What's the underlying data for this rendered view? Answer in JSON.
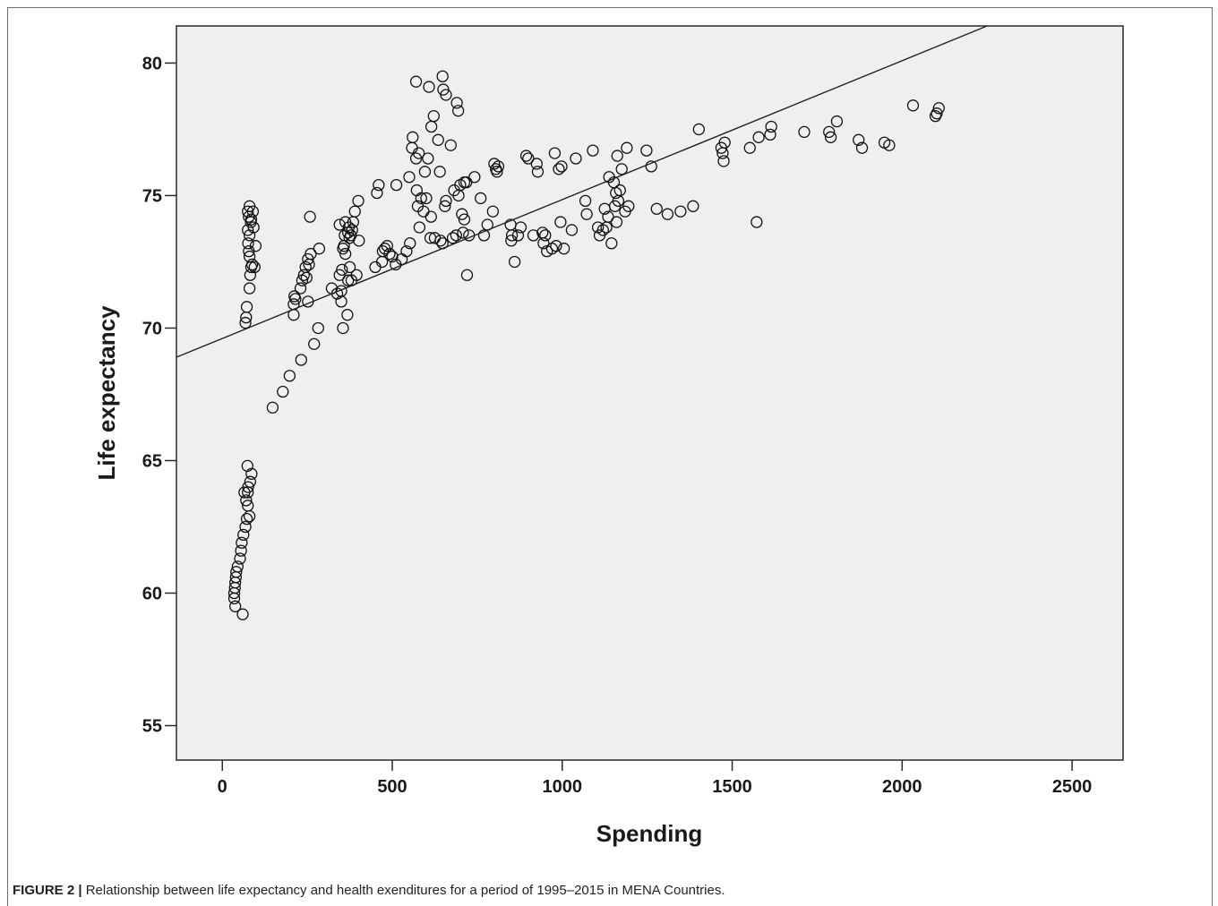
{
  "caption": {
    "label": "FIGURE 2 |",
    "text": "Relationship between life expectancy and health exenditures for a period of 1995–2015 in MENA Countries."
  },
  "colors": {
    "plot_background": "#efefef",
    "marker_stroke": "#111111",
    "fit_line": "#222222"
  },
  "chart_data": {
    "type": "scatter",
    "xlabel": "Spending",
    "ylabel": "Life expectancy",
    "xlim": [
      -135,
      2650
    ],
    "ylim": [
      53.7,
      81.4
    ],
    "x_ticks": [
      0,
      500,
      1000,
      1500,
      2000,
      2500
    ],
    "y_ticks": [
      55,
      60,
      65,
      70,
      75,
      80
    ],
    "grid": false,
    "legend": "none",
    "marker": "hollow-circle",
    "fit_line": {
      "x": [
        -135,
        2250
      ],
      "y": [
        68.9,
        81.4
      ]
    },
    "points": [
      [
        60,
        59.2
      ],
      [
        38,
        59.5
      ],
      [
        35,
        59.8
      ],
      [
        35,
        60.0
      ],
      [
        37,
        60.2
      ],
      [
        38,
        60.4
      ],
      [
        40,
        60.6
      ],
      [
        41,
        60.8
      ],
      [
        45,
        61.0
      ],
      [
        52,
        61.3
      ],
      [
        55,
        61.6
      ],
      [
        57,
        61.9
      ],
      [
        62,
        62.2
      ],
      [
        68,
        62.5
      ],
      [
        72,
        62.8
      ],
      [
        80,
        62.9
      ],
      [
        75,
        63.3
      ],
      [
        70,
        63.5
      ],
      [
        75,
        63.8
      ],
      [
        65,
        63.8
      ],
      [
        76,
        64.0
      ],
      [
        82,
        64.2
      ],
      [
        86,
        64.5
      ],
      [
        74,
        64.8
      ],
      [
        68,
        70.2
      ],
      [
        70,
        70.4
      ],
      [
        72,
        70.8
      ],
      [
        80,
        71.5
      ],
      [
        95,
        72.3
      ],
      [
        82,
        72.0
      ],
      [
        85,
        72.3
      ],
      [
        80,
        72.7
      ],
      [
        78,
        72.9
      ],
      [
        76,
        73.2
      ],
      [
        80,
        73.5
      ],
      [
        75,
        73.7
      ],
      [
        92,
        73.8
      ],
      [
        85,
        74.1
      ],
      [
        78,
        74.2
      ],
      [
        75,
        74.4
      ],
      [
        80,
        74.6
      ],
      [
        98,
        73.1
      ],
      [
        90,
        74.4
      ],
      [
        84,
        74.0
      ],
      [
        88,
        72.4
      ],
      [
        148,
        67.0
      ],
      [
        178,
        67.6
      ],
      [
        198,
        68.2
      ],
      [
        232,
        68.8
      ],
      [
        270,
        69.4
      ],
      [
        282,
        70.0
      ],
      [
        210,
        70.5
      ],
      [
        210,
        70.9
      ],
      [
        212,
        71.2
      ],
      [
        215,
        71.1
      ],
      [
        230,
        71.5
      ],
      [
        235,
        71.8
      ],
      [
        240,
        72.0
      ],
      [
        245,
        72.3
      ],
      [
        248,
        71.9
      ],
      [
        252,
        72.6
      ],
      [
        255,
        72.4
      ],
      [
        260,
        72.8
      ],
      [
        258,
        74.2
      ],
      [
        252,
        71.0
      ],
      [
        285,
        73.0
      ],
      [
        322,
        71.5
      ],
      [
        338,
        71.3
      ],
      [
        345,
        72.0
      ],
      [
        350,
        71.0
      ],
      [
        352,
        72.2
      ],
      [
        355,
        73.0
      ],
      [
        360,
        73.5
      ],
      [
        345,
        73.9
      ],
      [
        362,
        74.0
      ],
      [
        370,
        73.6
      ],
      [
        372,
        73.8
      ],
      [
        378,
        73.5
      ],
      [
        382,
        73.7
      ],
      [
        385,
        74.0
      ],
      [
        390,
        74.4
      ],
      [
        400,
        74.8
      ],
      [
        402,
        73.3
      ],
      [
        395,
        72.0
      ],
      [
        375,
        72.3
      ],
      [
        362,
        72.8
      ],
      [
        370,
        71.8
      ],
      [
        368,
        70.5
      ],
      [
        355,
        70.0
      ],
      [
        350,
        71.4
      ],
      [
        380,
        71.8
      ],
      [
        358,
        73.1
      ],
      [
        374,
        73.4
      ],
      [
        450,
        72.3
      ],
      [
        455,
        75.1
      ],
      [
        460,
        75.4
      ],
      [
        470,
        72.5
      ],
      [
        472,
        72.9
      ],
      [
        478,
        73.0
      ],
      [
        485,
        73.1
      ],
      [
        492,
        72.8
      ],
      [
        500,
        72.7
      ],
      [
        510,
        72.4
      ],
      [
        512,
        75.4
      ],
      [
        528,
        72.6
      ],
      [
        542,
        72.9
      ],
      [
        550,
        75.7
      ],
      [
        552,
        73.2
      ],
      [
        558,
        76.8
      ],
      [
        560,
        77.2
      ],
      [
        570,
        76.4
      ],
      [
        572,
        75.2
      ],
      [
        575,
        74.6
      ],
      [
        578,
        76.6
      ],
      [
        580,
        73.8
      ],
      [
        585,
        74.9
      ],
      [
        592,
        74.4
      ],
      [
        596,
        75.9
      ],
      [
        600,
        74.9
      ],
      [
        605,
        76.4
      ],
      [
        612,
        73.4
      ],
      [
        614,
        74.2
      ],
      [
        625,
        73.4
      ],
      [
        635,
        77.1
      ],
      [
        640,
        75.9
      ],
      [
        642,
        73.3
      ],
      [
        648,
        73.2
      ],
      [
        655,
        74.6
      ],
      [
        658,
        74.8
      ],
      [
        678,
        73.4
      ],
      [
        682,
        75.2
      ],
      [
        688,
        73.5
      ],
      [
        695,
        75.0
      ],
      [
        700,
        75.4
      ],
      [
        705,
        74.3
      ],
      [
        708,
        73.6
      ],
      [
        712,
        75.5
      ],
      [
        712,
        74.1
      ],
      [
        718,
        75.5
      ],
      [
        720,
        72.0
      ],
      [
        726,
        73.5
      ],
      [
        742,
        75.7
      ],
      [
        760,
        74.9
      ],
      [
        770,
        73.5
      ],
      [
        780,
        73.9
      ],
      [
        796,
        74.4
      ],
      [
        800,
        76.2
      ],
      [
        805,
        76.0
      ],
      [
        808,
        75.9
      ],
      [
        812,
        76.1
      ],
      [
        570,
        79.3
      ],
      [
        608,
        79.1
      ],
      [
        648,
        79.5
      ],
      [
        650,
        79.0
      ],
      [
        658,
        78.8
      ],
      [
        690,
        78.5
      ],
      [
        694,
        78.2
      ],
      [
        622,
        78.0
      ],
      [
        615,
        77.6
      ],
      [
        672,
        76.9
      ],
      [
        848,
        73.9
      ],
      [
        850,
        73.3
      ],
      [
        852,
        73.5
      ],
      [
        860,
        72.5
      ],
      [
        870,
        73.5
      ],
      [
        878,
        73.8
      ],
      [
        894,
        76.5
      ],
      [
        900,
        76.4
      ],
      [
        915,
        73.5
      ],
      [
        925,
        76.2
      ],
      [
        928,
        75.9
      ],
      [
        942,
        73.6
      ],
      [
        945,
        73.2
      ],
      [
        950,
        73.5
      ],
      [
        955,
        72.9
      ],
      [
        970,
        73.0
      ],
      [
        978,
        76.6
      ],
      [
        982,
        73.1
      ],
      [
        990,
        76.0
      ],
      [
        995,
        74.0
      ],
      [
        998,
        76.1
      ],
      [
        1005,
        73.0
      ],
      [
        1028,
        73.7
      ],
      [
        1040,
        76.4
      ],
      [
        1068,
        74.8
      ],
      [
        1072,
        74.3
      ],
      [
        1090,
        76.7
      ],
      [
        1105,
        73.8
      ],
      [
        1110,
        73.5
      ],
      [
        1120,
        73.7
      ],
      [
        1125,
        74.5
      ],
      [
        1130,
        73.8
      ],
      [
        1135,
        74.2
      ],
      [
        1138,
        75.7
      ],
      [
        1145,
        73.2
      ],
      [
        1152,
        75.5
      ],
      [
        1155,
        74.6
      ],
      [
        1158,
        75.1
      ],
      [
        1160,
        74.0
      ],
      [
        1162,
        76.5
      ],
      [
        1165,
        74.8
      ],
      [
        1170,
        75.2
      ],
      [
        1175,
        76.0
      ],
      [
        1185,
        74.4
      ],
      [
        1190,
        76.8
      ],
      [
        1195,
        74.6
      ],
      [
        1248,
        76.7
      ],
      [
        1262,
        76.1
      ],
      [
        1278,
        74.5
      ],
      [
        1310,
        74.3
      ],
      [
        1348,
        74.4
      ],
      [
        1385,
        74.6
      ],
      [
        1402,
        77.5
      ],
      [
        1468,
        76.8
      ],
      [
        1472,
        76.6
      ],
      [
        1475,
        76.3
      ],
      [
        1478,
        77.0
      ],
      [
        1552,
        76.8
      ],
      [
        1572,
        74.0
      ],
      [
        1578,
        77.2
      ],
      [
        1612,
        77.3
      ],
      [
        1615,
        77.6
      ],
      [
        1712,
        77.4
      ],
      [
        1785,
        77.4
      ],
      [
        1790,
        77.2
      ],
      [
        1808,
        77.8
      ],
      [
        1872,
        77.1
      ],
      [
        1882,
        76.8
      ],
      [
        1948,
        77.0
      ],
      [
        1962,
        76.9
      ],
      [
        2032,
        78.4
      ],
      [
        2098,
        78.0
      ],
      [
        2102,
        78.1
      ],
      [
        2108,
        78.3
      ]
    ]
  }
}
